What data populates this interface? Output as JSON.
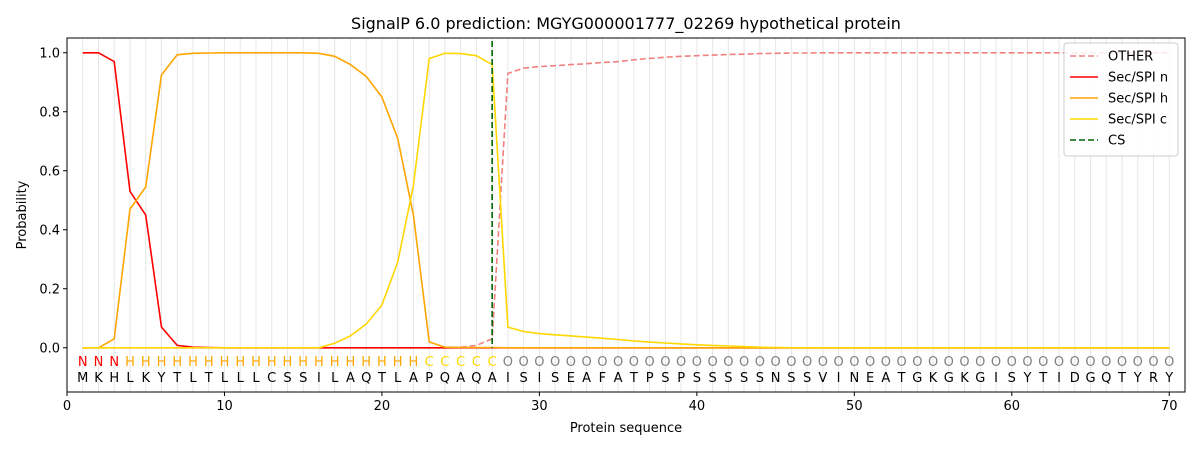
{
  "chart_data": {
    "type": "line",
    "title": "SignalP 6.0 prediction: MGYG000001777_02269 hypothetical protein",
    "xlabel": "Protein sequence",
    "ylabel": "Probability",
    "xlim": [
      0,
      71
    ],
    "ylim": [
      -0.15,
      1.05
    ],
    "xticks": [
      0,
      10,
      20,
      30,
      40,
      50,
      60,
      70
    ],
    "yticks": [
      0.0,
      0.2,
      0.4,
      0.6,
      0.8,
      1.0
    ],
    "xtick_labels": [
      "0",
      "10",
      "20",
      "30",
      "40",
      "50",
      "60",
      "70"
    ],
    "ytick_labels": [
      "0.0",
      "0.2",
      "0.4",
      "0.6",
      "0.8",
      "1.0"
    ],
    "grid": "vertical lines at each residue",
    "legend_position": "top-right",
    "sequence": [
      "M",
      "K",
      "H",
      "L",
      "K",
      "Y",
      "T",
      "L",
      "T",
      "L",
      "L",
      "L",
      "C",
      "S",
      "S",
      "I",
      "L",
      "A",
      "Q",
      "T",
      "L",
      "A",
      "P",
      "Q",
      "A",
      "Q",
      "A",
      "I",
      "S",
      "I",
      "S",
      "E",
      "A",
      "F",
      "A",
      "T",
      "P",
      "S",
      "P",
      "S",
      "S",
      "S",
      "S",
      "S",
      "N",
      "S",
      "S",
      "V",
      "I",
      "N",
      "E",
      "A",
      "T",
      "G",
      "K",
      "G",
      "K",
      "G",
      "I",
      "S",
      "Y",
      "T",
      "I",
      "D",
      "G",
      "Q",
      "T",
      "Y",
      "R",
      "Y"
    ],
    "prediction": [
      "N",
      "N",
      "N",
      "H",
      "H",
      "H",
      "H",
      "H",
      "H",
      "H",
      "H",
      "H",
      "H",
      "H",
      "H",
      "H",
      "H",
      "H",
      "H",
      "H",
      "H",
      "H",
      "C",
      "C",
      "C",
      "C",
      "C",
      "O",
      "O",
      "O",
      "O",
      "O",
      "O",
      "O",
      "O",
      "O",
      "O",
      "O",
      "O",
      "O",
      "O",
      "O",
      "O",
      "O",
      "O",
      "O",
      "O",
      "O",
      "O",
      "O",
      "O",
      "O",
      "O",
      "O",
      "O",
      "O",
      "O",
      "O",
      "O",
      "O",
      "O",
      "O",
      "O",
      "O",
      "O",
      "O",
      "O",
      "O",
      "O",
      "O"
    ],
    "prediction_colors": {
      "N": "#ff0000",
      "H": "#ffa500",
      "C": "#ffd700",
      "O": "#808080"
    },
    "cleavage_site": 27,
    "series": [
      {
        "name": "OTHER",
        "color": "#f08080",
        "style": "dashed",
        "values": [
          0,
          0,
          0,
          0,
          0,
          0,
          0,
          0,
          0,
          0,
          0,
          0,
          0,
          0,
          0,
          0,
          0,
          0,
          0,
          0,
          0,
          0,
          0,
          0,
          0.002,
          0.008,
          0.03,
          0.93,
          0.948,
          0.953,
          0.956,
          0.96,
          0.963,
          0.967,
          0.97,
          0.976,
          0.981,
          0.985,
          0.988,
          0.99,
          0.992,
          0.994,
          0.995,
          0.997,
          0.998,
          0.999,
          0.999,
          1,
          1,
          1,
          1,
          1,
          1,
          1,
          1,
          1,
          1,
          1,
          1,
          1,
          1,
          1,
          1,
          1,
          1,
          1,
          1,
          1,
          1,
          1
        ]
      },
      {
        "name": "Sec/SPI n",
        "color": "#ff0000",
        "style": "solid",
        "values": [
          1.0,
          1.0,
          0.97,
          0.53,
          0.45,
          0.07,
          0.008,
          0.002,
          0.001,
          0,
          0,
          0,
          0,
          0,
          0,
          0,
          0,
          0,
          0,
          0,
          0,
          0,
          0,
          0,
          0,
          0,
          0,
          0,
          0,
          0,
          0,
          0,
          0,
          0,
          0,
          0,
          0,
          0,
          0,
          0,
          0,
          0,
          0,
          0,
          0,
          0,
          0,
          0,
          0,
          0,
          0,
          0,
          0,
          0,
          0,
          0,
          0,
          0,
          0,
          0,
          0,
          0,
          0,
          0,
          0,
          0,
          0,
          0,
          0,
          0
        ]
      },
      {
        "name": "Sec/SPI h",
        "color": "#ffa500",
        "style": "solid",
        "values": [
          0,
          0,
          0.03,
          0.47,
          0.545,
          0.925,
          0.993,
          0.998,
          0.999,
          1,
          1,
          1,
          1,
          1,
          1,
          0.998,
          0.988,
          0.96,
          0.92,
          0.85,
          0.71,
          0.45,
          0.02,
          0.002,
          0.001,
          0.001,
          0.001,
          0,
          0,
          0,
          0,
          0,
          0,
          0,
          0,
          0,
          0,
          0,
          0,
          0,
          0,
          0,
          0,
          0,
          0,
          0,
          0,
          0,
          0,
          0,
          0,
          0,
          0,
          0,
          0,
          0,
          0,
          0,
          0,
          0,
          0,
          0,
          0,
          0,
          0,
          0,
          0,
          0,
          0,
          0
        ]
      },
      {
        "name": "Sec/SPI c",
        "color": "#ffd700",
        "style": "solid",
        "values": [
          0,
          0,
          0,
          0,
          0,
          0,
          0,
          0,
          0,
          0,
          0,
          0,
          0,
          0,
          0,
          0,
          0.015,
          0.04,
          0.08,
          0.145,
          0.29,
          0.55,
          0.98,
          0.998,
          0.997,
          0.99,
          0.96,
          0.07,
          0.055,
          0.048,
          0.044,
          0.04,
          0.036,
          0.032,
          0.028,
          0.023,
          0.019,
          0.016,
          0.013,
          0.01,
          0.008,
          0.006,
          0.004,
          0.002,
          0.001,
          0,
          0,
          0,
          0,
          0,
          0,
          0,
          0,
          0,
          0,
          0,
          0,
          0,
          0,
          0,
          0,
          0,
          0,
          0,
          0,
          0,
          0,
          0,
          0,
          0
        ]
      }
    ],
    "legend": [
      {
        "label": "OTHER",
        "color": "#f08080",
        "style": "dashed"
      },
      {
        "label": "Sec/SPI n",
        "color": "#ff0000",
        "style": "solid"
      },
      {
        "label": "Sec/SPI h",
        "color": "#ffa500",
        "style": "solid"
      },
      {
        "label": "Sec/SPI c",
        "color": "#ffd700",
        "style": "solid"
      },
      {
        "label": "CS",
        "color": "#006400",
        "style": "dashed"
      }
    ]
  }
}
